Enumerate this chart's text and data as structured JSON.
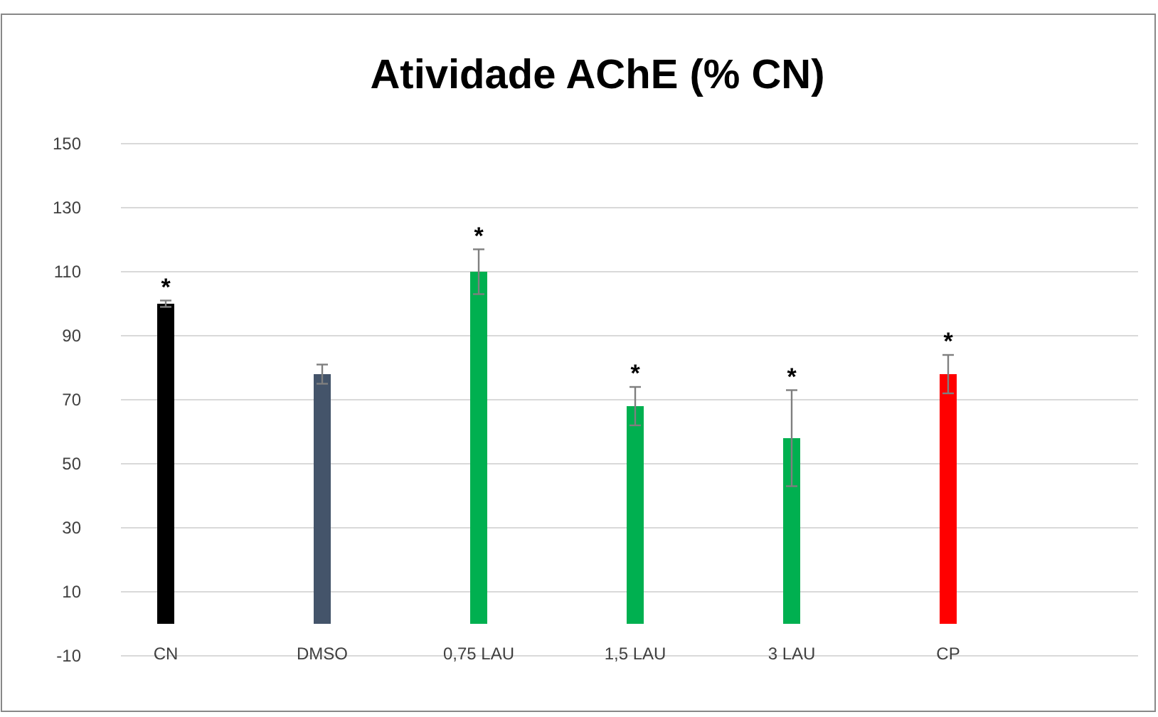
{
  "chart_data": {
    "type": "bar",
    "title": "Atividade AChE (% CN)",
    "categories": [
      "CN",
      "DMSO",
      "0,75 LAU",
      "1,5 LAU",
      "3 LAU",
      "CP"
    ],
    "values": [
      100,
      78,
      110,
      68,
      58,
      78
    ],
    "colors": [
      "#000000",
      "#44546a",
      "#00b050",
      "#00b050",
      "#00b050",
      "#ff0000"
    ],
    "errors": [
      1,
      3,
      7,
      6,
      15,
      6
    ],
    "ylim": [
      -10,
      150
    ],
    "yticks": [
      -10,
      10,
      30,
      50,
      70,
      90,
      110,
      130,
      150
    ],
    "grid": "y",
    "annotations": [
      {
        "text": "*",
        "x": "CN",
        "y": 101
      },
      {
        "text": "*",
        "x": "0,75 LAU",
        "y": 117
      },
      {
        "text": "*",
        "x": "1,5 LAU",
        "y": 74
      },
      {
        "text": "*",
        "x": "3 LAU",
        "y": 73
      },
      {
        "text": "*",
        "x": "CP",
        "y": 84
      }
    ]
  }
}
